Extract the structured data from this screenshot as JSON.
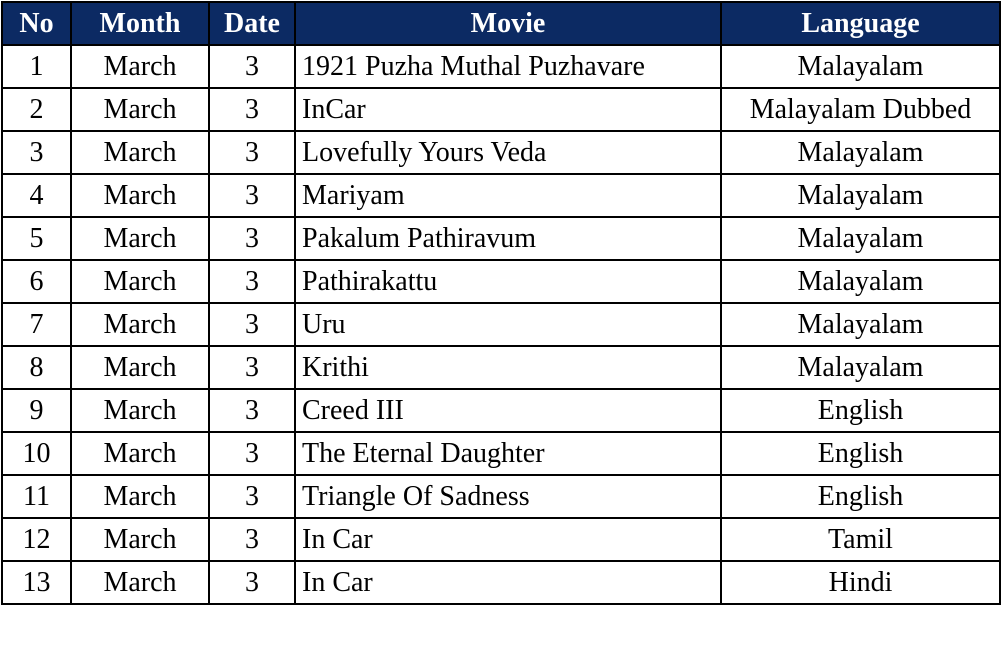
{
  "colors": {
    "header_background": "#0c2a63",
    "header_text": "#ffffff",
    "body_text": "#000000",
    "grid_line": "#000000"
  },
  "table": {
    "headers": {
      "no": "No",
      "month": "Month",
      "date": "Date",
      "movie": "Movie",
      "language": "Language"
    },
    "rows": [
      {
        "no": "1",
        "month": "March",
        "date": "3",
        "movie": "1921 Puzha Muthal Puzhavare",
        "language": "Malayalam"
      },
      {
        "no": "2",
        "month": "March",
        "date": "3",
        "movie": "InCar",
        "language": "Malayalam Dubbed"
      },
      {
        "no": "3",
        "month": "March",
        "date": "3",
        "movie": "Lovefully Yours Veda",
        "language": "Malayalam"
      },
      {
        "no": "4",
        "month": "March",
        "date": "3",
        "movie": "Mariyam",
        "language": "Malayalam"
      },
      {
        "no": "5",
        "month": "March",
        "date": "3",
        "movie": "Pakalum Pathiravum",
        "language": "Malayalam"
      },
      {
        "no": "6",
        "month": "March",
        "date": "3",
        "movie": "Pathirakattu",
        "language": "Malayalam"
      },
      {
        "no": "7",
        "month": "March",
        "date": "3",
        "movie": "Uru",
        "language": "Malayalam"
      },
      {
        "no": "8",
        "month": "March",
        "date": "3",
        "movie": "Krithi",
        "language": "Malayalam"
      },
      {
        "no": "9",
        "month": "March",
        "date": "3",
        "movie": "Creed III",
        "language": "English"
      },
      {
        "no": "10",
        "month": "March",
        "date": "3",
        "movie": "The Eternal Daughter",
        "language": "English"
      },
      {
        "no": "11",
        "month": "March",
        "date": "3",
        "movie": "Triangle Of Sadness",
        "language": "English"
      },
      {
        "no": "12",
        "month": "March",
        "date": "3",
        "movie": "In Car",
        "language": "Tamil"
      },
      {
        "no": "13",
        "month": "March",
        "date": "3",
        "movie": "In Car",
        "language": "Hindi"
      }
    ]
  }
}
